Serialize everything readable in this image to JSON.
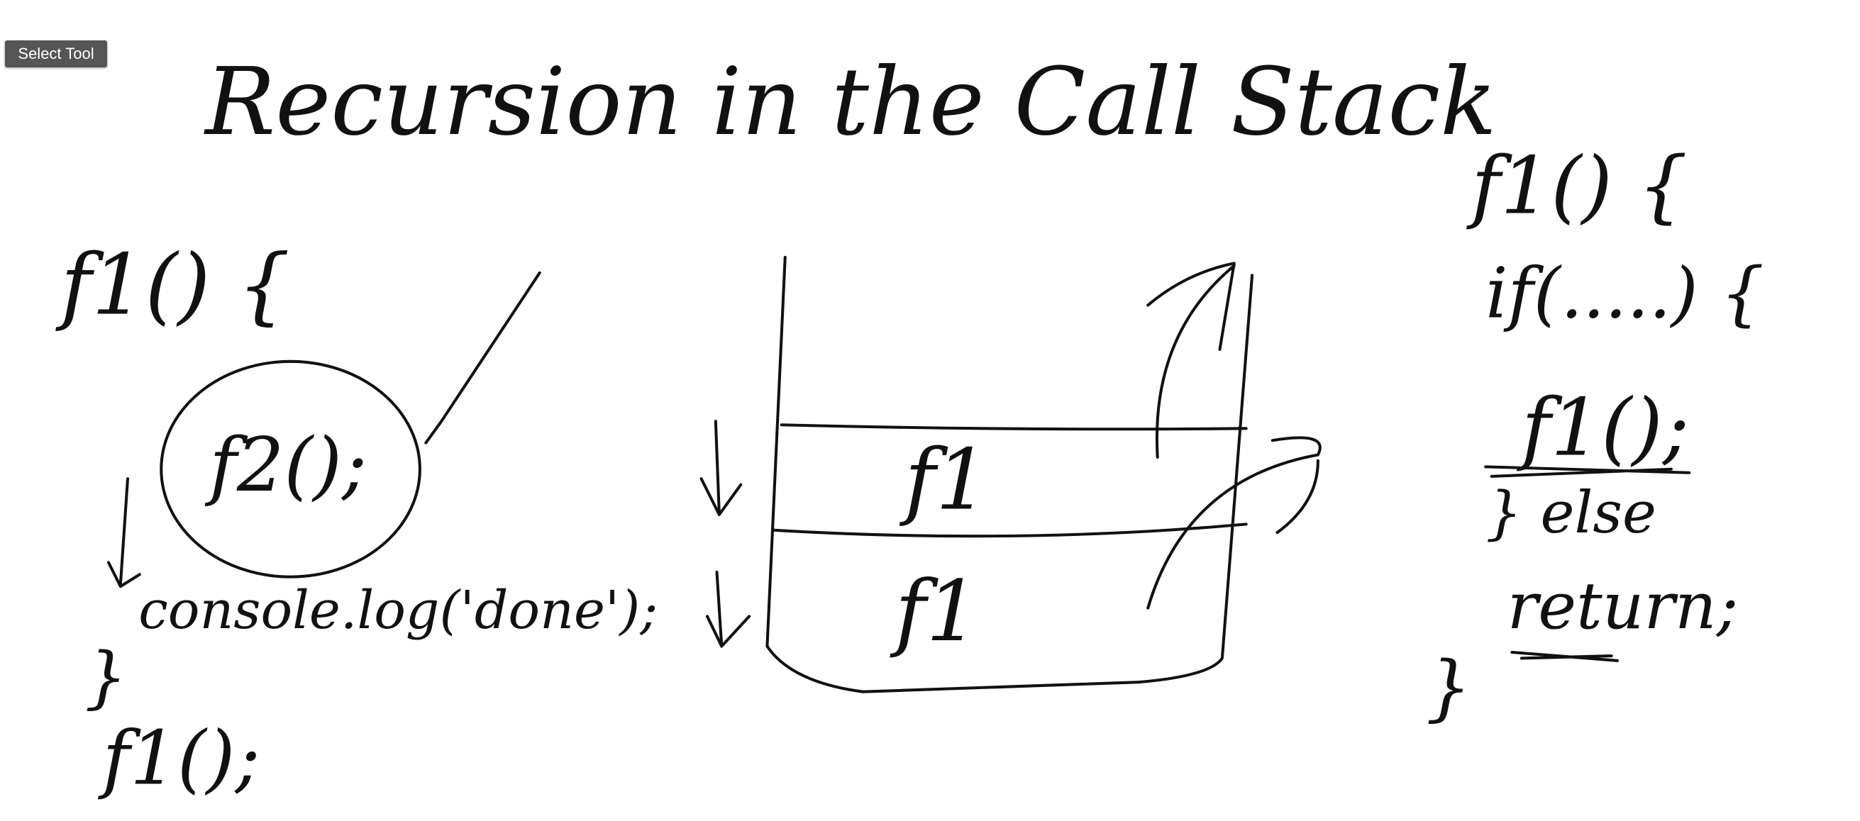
{
  "toolbar": {
    "button": "Select Tool"
  },
  "title": "Recursion in the Call Stack",
  "left_code": {
    "lines": [
      "f1() {",
      "f2();",
      "console.log('done');",
      "}",
      "f1();"
    ]
  },
  "stack": {
    "frames": [
      "f1",
      "f1"
    ]
  },
  "right_code": {
    "lines": [
      "f1() {",
      "if(.....) {",
      "f1();",
      "} else",
      "return;",
      "}"
    ]
  }
}
